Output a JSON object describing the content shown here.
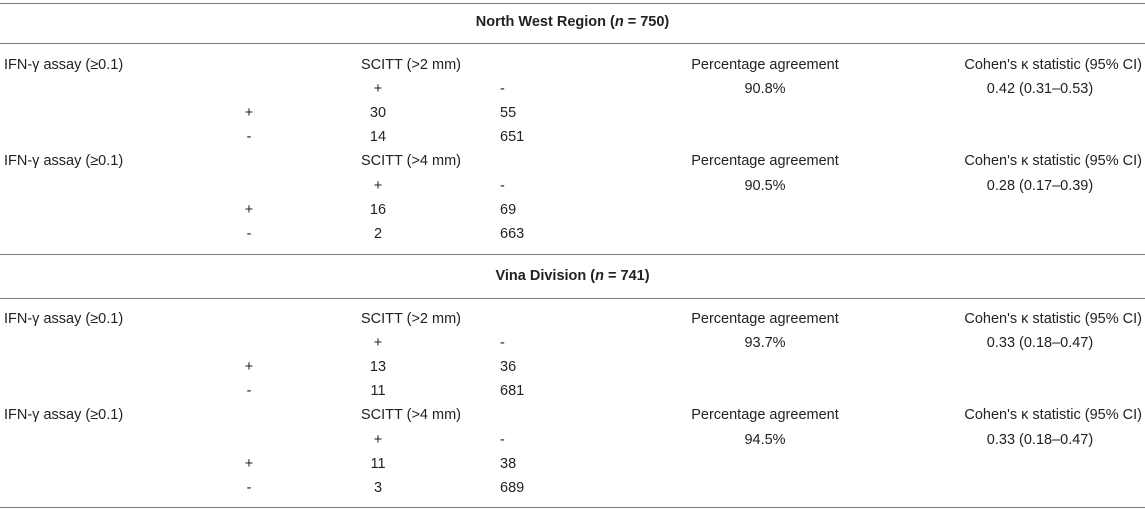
{
  "sections": [
    {
      "title": "North West Region (",
      "n_label": "n",
      "n_value": " = 750)",
      "blocks": [
        {
          "assay_label": "IFN-γ assay (≥0.1)",
          "scitt_label": "SCITT (>2 mm)",
          "pct_header": "Percentage agreement",
          "kappa_header": "Cohen's κ statistic (95% CI)",
          "col_pos": "+",
          "col_neg": "-",
          "pct_value": "90.8%",
          "kappa_value": "0.42 (0.31–0.53)",
          "rows": [
            {
              "sign": "+",
              "v1": "30",
              "v2": "55"
            },
            {
              "sign": "-",
              "v1": "14",
              "v2": "651"
            }
          ]
        },
        {
          "assay_label": "IFN-γ assay (≥0.1)",
          "scitt_label": "SCITT (>4 mm)",
          "pct_header": "Percentage agreement",
          "kappa_header": "Cohen's κ statistic (95% CI)",
          "col_pos": "+",
          "col_neg": "-",
          "pct_value": "90.5%",
          "kappa_value": "0.28 (0.17–0.39)",
          "rows": [
            {
              "sign": "+",
              "v1": "16",
              "v2": "69"
            },
            {
              "sign": "-",
              "v1": "2",
              "v2": "663"
            }
          ]
        }
      ]
    },
    {
      "title": "Vina Division (",
      "n_label": "n",
      "n_value": " = 741)",
      "blocks": [
        {
          "assay_label": "IFN-γ assay (≥0.1)",
          "scitt_label": "SCITT (>2 mm)",
          "pct_header": "Percentage agreement",
          "kappa_header": "Cohen's κ statistic (95% CI)",
          "col_pos": "+",
          "col_neg": "-",
          "pct_value": "93.7%",
          "kappa_value": "0.33 (0.18–0.47)",
          "rows": [
            {
              "sign": "+",
              "v1": "13",
              "v2": "36"
            },
            {
              "sign": "-",
              "v1": "11",
              "v2": "681"
            }
          ]
        },
        {
          "assay_label": "IFN-γ assay (≥0.1)",
          "scitt_label": "SCITT (>4 mm)",
          "pct_header": "Percentage agreement",
          "kappa_header": "Cohen's κ statistic (95% CI)",
          "col_pos": "+",
          "col_neg": "-",
          "pct_value": "94.5%",
          "kappa_value": "0.33 (0.18–0.47)",
          "rows": [
            {
              "sign": "+",
              "v1": "11",
              "v2": "38"
            },
            {
              "sign": "-",
              "v1": "3",
              "v2": "689"
            }
          ]
        }
      ]
    }
  ]
}
